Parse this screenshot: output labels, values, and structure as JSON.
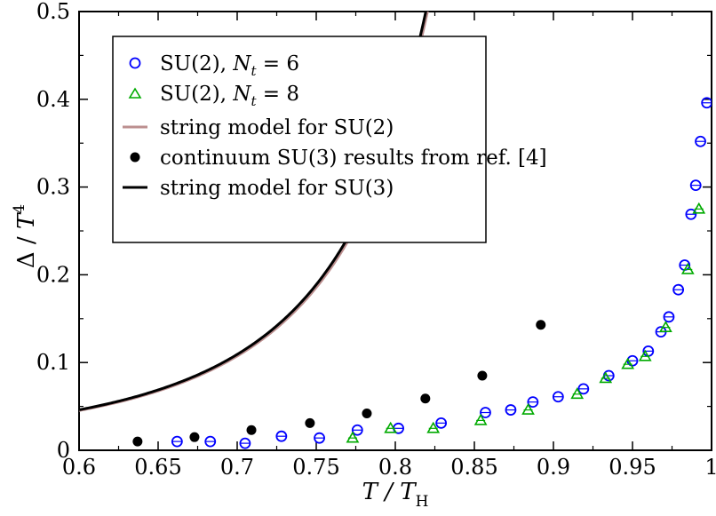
{
  "chart_data": {
    "type": "scatter",
    "title": "",
    "xlabel": "T / T_H",
    "ylabel": "Δ / T^4",
    "xlim": [
      0.6,
      1.0
    ],
    "ylim": [
      0.0,
      0.5
    ],
    "x_ticks": [
      0.6,
      0.65,
      0.7,
      0.75,
      0.8,
      0.85,
      0.9,
      0.95,
      1
    ],
    "x_tick_labels": [
      "0.6",
      "0.65",
      "0.7",
      "0.75",
      "0.8",
      "0.85",
      "0.9",
      "0.95",
      "1"
    ],
    "y_ticks": [
      0,
      0.1,
      0.2,
      0.3,
      0.4,
      0.5
    ],
    "y_tick_labels": [
      "0",
      "0.1",
      "0.2",
      "0.3",
      "0.4",
      "0.5"
    ],
    "legend_position": "top-left",
    "grid": false,
    "series": [
      {
        "name": "SU(2), N_t = 6",
        "marker": "circle-open",
        "color": "#0000ff",
        "points": [
          [
            0.662,
            0.01
          ],
          [
            0.683,
            0.01
          ],
          [
            0.705,
            0.008
          ],
          [
            0.728,
            0.016
          ],
          [
            0.752,
            0.014
          ],
          [
            0.776,
            0.023
          ],
          [
            0.802,
            0.025
          ],
          [
            0.829,
            0.031
          ],
          [
            0.857,
            0.043
          ],
          [
            0.873,
            0.046
          ],
          [
            0.887,
            0.055
          ],
          [
            0.903,
            0.061
          ],
          [
            0.919,
            0.07
          ],
          [
            0.935,
            0.085
          ],
          [
            0.95,
            0.102
          ],
          [
            0.96,
            0.113
          ],
          [
            0.968,
            0.135
          ],
          [
            0.973,
            0.152
          ],
          [
            0.979,
            0.183
          ],
          [
            0.983,
            0.211
          ],
          [
            0.987,
            0.269
          ],
          [
            0.99,
            0.302
          ],
          [
            0.993,
            0.352
          ],
          [
            0.997,
            0.396
          ]
        ]
      },
      {
        "name": "SU(2), N_t = 8",
        "marker": "triangle-open",
        "color": "#00aa00",
        "points": [
          [
            0.773,
            0.014
          ],
          [
            0.797,
            0.025
          ],
          [
            0.824,
            0.025
          ],
          [
            0.854,
            0.034
          ],
          [
            0.884,
            0.046
          ],
          [
            0.915,
            0.064
          ],
          [
            0.933,
            0.082
          ],
          [
            0.947,
            0.098
          ],
          [
            0.958,
            0.107
          ],
          [
            0.971,
            0.14
          ],
          [
            0.985,
            0.206
          ],
          [
            0.992,
            0.275
          ]
        ]
      },
      {
        "name": "string model for SU(2)",
        "style": "line",
        "color": "#bc8f8f",
        "exponent": 3,
        "amplitude": 0.0029,
        "x_end": 0.991
      },
      {
        "name": "continuum SU(3) results from ref. [4]",
        "marker": "circle-filled",
        "color": "#000000",
        "points": [
          [
            0.637,
            0.01
          ],
          [
            0.673,
            0.015
          ],
          [
            0.709,
            0.023
          ],
          [
            0.746,
            0.031
          ],
          [
            0.782,
            0.042
          ],
          [
            0.819,
            0.059
          ],
          [
            0.855,
            0.085
          ],
          [
            0.892,
            0.143
          ]
        ]
      },
      {
        "name": "string model for SU(3)",
        "style": "line",
        "color": "#000000",
        "exponent": 3,
        "amplitude": 0.00295,
        "x_end": 0.9855
      }
    ]
  }
}
